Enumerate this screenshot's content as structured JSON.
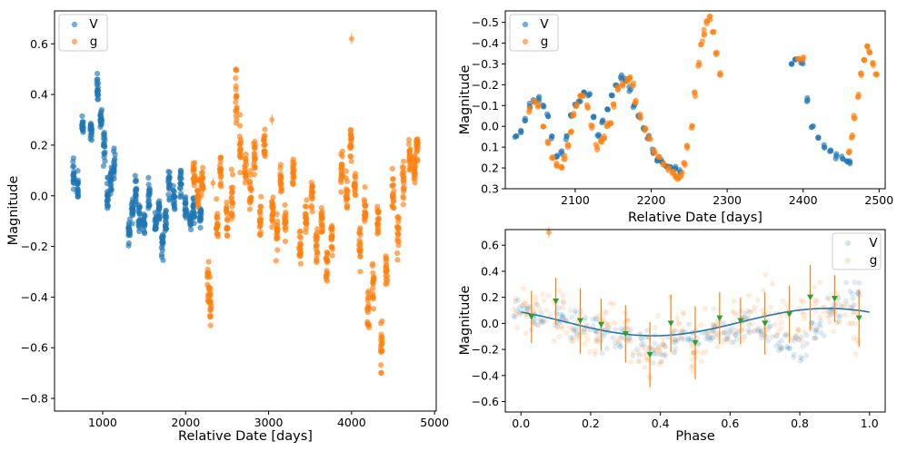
{
  "figure": {
    "width": 987,
    "height": 493
  },
  "colors": {
    "V": "#1f77b4",
    "g": "#ff7f0e",
    "binned": "#2ca02c",
    "model": "#1f77b4"
  },
  "chart_data": [
    {
      "id": "full",
      "type": "scatter",
      "title": "",
      "xlabel": "Relative Date [days]",
      "ylabel": "Magnitude",
      "xlim": [
        420,
        5020
      ],
      "ylim": [
        0.73,
        -0.85
      ],
      "y_inverted": true,
      "xticks": [
        1000,
        2000,
        3000,
        4000,
        5000
      ],
      "xtick_labels": [
        "1000",
        "2000",
        "3000",
        "4000",
        "5000"
      ],
      "yticks": [
        0.6,
        0.4,
        0.2,
        0.0,
        -0.2,
        -0.4,
        -0.6,
        -0.8
      ],
      "ytick_labels": [
        "0.6",
        "0.4",
        "0.2",
        "0.0",
        "−0.2",
        "−0.4",
        "−0.6",
        "−0.8"
      ],
      "legend": {
        "position": "upper-left",
        "entries": [
          "V",
          "g"
        ]
      },
      "series": [
        {
          "name": "V",
          "color_key": "V",
          "segments": [
            [
              650,
              0.08,
              0.06
            ],
            [
              700,
              0.03,
              0.05
            ],
            [
              760,
              0.27,
              0.03
            ],
            [
              860,
              0.27,
              0.04
            ],
            [
              940,
              0.42,
              0.05
            ],
            [
              980,
              0.3,
              0.04
            ],
            [
              1020,
              0.2,
              0.08
            ],
            [
              1060,
              0.0,
              0.06
            ],
            [
              1100,
              0.05,
              0.06
            ],
            [
              1140,
              0.12,
              0.06
            ],
            [
              1320,
              -0.15,
              0.06
            ],
            [
              1360,
              -0.05,
              0.06
            ],
            [
              1400,
              0.02,
              0.06
            ],
            [
              1440,
              -0.1,
              0.06
            ],
            [
              1500,
              -0.12,
              0.05
            ],
            [
              1560,
              0.0,
              0.06
            ],
            [
              1640,
              -0.1,
              0.05
            ],
            [
              1680,
              -0.05,
              0.06
            ],
            [
              1720,
              -0.2,
              0.06
            ],
            [
              1760,
              -0.1,
              0.06
            ],
            [
              1800,
              0.05,
              0.06
            ],
            [
              1860,
              0.0,
              0.05
            ],
            [
              1940,
              0.05,
              0.06
            ],
            [
              2000,
              -0.05,
              0.05
            ],
            [
              2060,
              -0.1,
              0.04
            ],
            [
              2100,
              -0.05,
              0.06
            ],
            [
              2180,
              -0.08,
              0.04
            ]
          ]
        },
        {
          "name": "g",
          "color_key": "g",
          "segments": [
            [
              2100,
              0.1,
              0.06
            ],
            [
              2150,
              0.0,
              0.06
            ],
            [
              2200,
              0.05,
              0.06
            ],
            [
              2270,
              -0.35,
              0.09
            ],
            [
              2300,
              -0.4,
              0.1
            ],
            [
              2380,
              -0.1,
              0.07
            ],
            [
              2420,
              0.1,
              0.08
            ],
            [
              2500,
              -0.1,
              0.09
            ],
            [
              2560,
              0.0,
              0.1
            ],
            [
              2610,
              0.4,
              0.12
            ],
            [
              2660,
              0.2,
              0.1
            ],
            [
              2720,
              0.1,
              0.07
            ],
            [
              2780,
              0.0,
              0.08
            ],
            [
              2830,
              0.15,
              0.08
            ],
            [
              2900,
              -0.1,
              0.07
            ],
            [
              2950,
              0.2,
              0.06
            ],
            [
              3050,
              -0.05,
              0.07
            ],
            [
              3100,
              -0.15,
              0.07
            ],
            [
              3150,
              0.05,
              0.07
            ],
            [
              3200,
              -0.1,
              0.07
            ],
            [
              3300,
              0.1,
              0.07
            ],
            [
              3380,
              -0.2,
              0.08
            ],
            [
              3450,
              -0.1,
              0.07
            ],
            [
              3520,
              0.0,
              0.07
            ],
            [
              3580,
              -0.2,
              0.08
            ],
            [
              3640,
              -0.1,
              0.07
            ],
            [
              3700,
              -0.28,
              0.09
            ],
            [
              3760,
              -0.15,
              0.07
            ],
            [
              3880,
              0.1,
              0.08
            ],
            [
              3940,
              0.0,
              0.08
            ],
            [
              3990,
              0.2,
              0.07
            ],
            [
              4040,
              0.05,
              0.07
            ],
            [
              4100,
              -0.2,
              0.08
            ],
            [
              4160,
              -0.05,
              0.07
            ],
            [
              4200,
              -0.45,
              0.1
            ],
            [
              4260,
              -0.35,
              0.08
            ],
            [
              4320,
              -0.1,
              0.07
            ],
            [
              4360,
              -0.6,
              0.1
            ],
            [
              4420,
              -0.3,
              0.08
            ],
            [
              4500,
              0.0,
              0.08
            ],
            [
              4560,
              -0.15,
              0.07
            ],
            [
              4620,
              0.05,
              0.07
            ],
            [
              4700,
              0.15,
              0.07
            ],
            [
              4760,
              0.1,
              0.07
            ],
            [
              4790,
              0.2,
              0.06
            ]
          ]
        }
      ],
      "outliers": [
        [
          4000,
          0.62
        ],
        [
          2330,
          0.05
        ],
        [
          2900,
          -0.12
        ],
        [
          3040,
          0.3
        ]
      ]
    },
    {
      "id": "zoom",
      "type": "scatter",
      "title": "",
      "xlabel": "Relative Date [days]",
      "ylabel": "Magnitude",
      "xlim": [
        2008,
        2508
      ],
      "ylim": [
        -0.555,
        0.3
      ],
      "y_inverted": false,
      "xticks": [
        2100,
        2200,
        2300,
        2400,
        2500
      ],
      "xtick_labels": [
        "2100",
        "2200",
        "2300",
        "2400",
        "2500"
      ],
      "yticks": [
        -0.5,
        -0.4,
        -0.3,
        -0.2,
        -0.1,
        0.0,
        0.1,
        0.2,
        0.3
      ],
      "ytick_labels": [
        "−0.5",
        "−0.4",
        "−0.3",
        "−0.2",
        "−0.1",
        "0.0",
        "0.1",
        "0.2",
        "0.3"
      ],
      "legend": {
        "position": "upper-left",
        "entries": [
          "V",
          "g"
        ]
      },
      "series": [
        {
          "name": "V",
          "color_key": "V",
          "x": [
            2022,
            2028,
            2034,
            2040,
            2046,
            2052,
            2058,
            2064,
            2070,
            2076,
            2082,
            2088,
            2094,
            2100,
            2106,
            2112,
            2118,
            2124,
            2130,
            2136,
            2142,
            2148,
            2154,
            2160,
            2166,
            2172,
            2178,
            2184,
            2190,
            2196,
            2202,
            2208,
            2214,
            2220,
            2226,
            2232,
            2238,
            2385,
            2390,
            2398,
            2405,
            2412,
            2420,
            2428,
            2436,
            2444,
            2452,
            2458,
            2462
          ],
          "y": [
            0.05,
            0.02,
            -0.03,
            -0.1,
            -0.12,
            -0.13,
            -0.1,
            -0.05,
            0.05,
            0.15,
            0.12,
            0.05,
            -0.05,
            -0.1,
            -0.12,
            -0.16,
            -0.15,
            -0.05,
            0.05,
            -0.02,
            -0.08,
            -0.15,
            -0.2,
            -0.24,
            -0.22,
            -0.18,
            -0.1,
            -0.05,
            0.0,
            0.05,
            0.12,
            0.16,
            0.17,
            0.19,
            0.19,
            0.2,
            0.22,
            -0.3,
            -0.32,
            -0.31,
            -0.13,
            0.0,
            0.05,
            0.1,
            0.12,
            0.14,
            0.15,
            0.17,
            0.17
          ]
        },
        {
          "name": "g",
          "color_key": "g",
          "x": [
            2040,
            2046,
            2052,
            2058,
            2064,
            2070,
            2076,
            2082,
            2086,
            2090,
            2094,
            2098,
            2102,
            2106,
            2110,
            2116,
            2122,
            2128,
            2134,
            2138,
            2142,
            2146,
            2150,
            2156,
            2162,
            2168,
            2172,
            2176,
            2180,
            2186,
            2192,
            2198,
            2204,
            2210,
            2216,
            2222,
            2228,
            2232,
            2236,
            2240,
            2244,
            2248,
            2254,
            2258,
            2262,
            2266,
            2270,
            2274,
            2278,
            2282,
            2286,
            2290,
            2394,
            2400,
            2460,
            2464,
            2468,
            2472,
            2476,
            2480,
            2484,
            2488,
            2492,
            2496
          ],
          "y": [
            -0.08,
            -0.12,
            -0.1,
            0.0,
            0.08,
            0.15,
            0.18,
            0.2,
            0.15,
            0.1,
            0.02,
            -0.05,
            -0.1,
            -0.14,
            -0.15,
            -0.1,
            0.0,
            0.1,
            0.07,
            0.05,
            0.0,
            -0.02,
            -0.1,
            -0.18,
            -0.2,
            -0.22,
            -0.23,
            -0.2,
            -0.12,
            -0.05,
            0.02,
            0.06,
            0.12,
            0.15,
            0.18,
            0.2,
            0.22,
            0.24,
            0.25,
            0.23,
            0.18,
            0.1,
            0.0,
            -0.15,
            -0.3,
            -0.4,
            -0.45,
            -0.5,
            -0.52,
            -0.45,
            -0.35,
            -0.25,
            -0.33,
            -0.33,
            0.12,
            0.05,
            -0.05,
            -0.15,
            -0.25,
            -0.32,
            -0.38,
            -0.36,
            -0.3,
            -0.25
          ]
        }
      ]
    },
    {
      "id": "phase",
      "type": "scatter",
      "title": "",
      "xlabel": "Phase",
      "ylabel": "Magnitude",
      "xlim": [
        -0.045,
        1.045
      ],
      "ylim": [
        0.72,
        -0.68
      ],
      "y_inverted": true,
      "xticks": [
        0.0,
        0.2,
        0.4,
        0.6,
        0.8,
        1.0
      ],
      "xtick_labels": [
        "0.0",
        "0.2",
        "0.4",
        "0.6",
        "0.8",
        "1.0"
      ],
      "yticks": [
        0.6,
        0.4,
        0.2,
        0.0,
        -0.2,
        -0.4,
        -0.6
      ],
      "ytick_labels": [
        "0.6",
        "0.4",
        "0.2",
        "0.0",
        "−0.2",
        "−0.4",
        "−0.6"
      ],
      "legend": {
        "position": "upper-right",
        "entries": [
          "V",
          "g"
        ]
      },
      "model": {
        "name": "sinusoid fit",
        "amplitude": 0.105,
        "phase_of_minimum": 0.88,
        "mean": 0.01
      },
      "binned": {
        "x": [
          0.03,
          0.1,
          0.17,
          0.23,
          0.3,
          0.37,
          0.43,
          0.5,
          0.57,
          0.63,
          0.7,
          0.77,
          0.83,
          0.9,
          0.97
        ],
        "y": [
          0.05,
          0.17,
          0.02,
          -0.01,
          -0.08,
          -0.24,
          0.0,
          -0.15,
          0.04,
          0.02,
          0.0,
          0.07,
          0.2,
          0.19,
          0.04
        ],
        "err": [
          0.2,
          0.18,
          0.25,
          0.2,
          0.22,
          0.25,
          0.22,
          0.28,
          0.2,
          0.18,
          0.24,
          0.22,
          0.25,
          0.18,
          0.22
        ]
      },
      "series": [
        {
          "name": "V",
          "color_key": "V",
          "segments": [
            [
              0.0,
              0.1,
              0.08
            ],
            [
              0.05,
              0.05,
              0.1
            ],
            [
              0.1,
              0.05,
              0.1
            ],
            [
              0.15,
              0.0,
              0.12
            ],
            [
              0.2,
              -0.05,
              0.12
            ],
            [
              0.25,
              -0.1,
              0.12
            ],
            [
              0.3,
              -0.1,
              0.12
            ],
            [
              0.35,
              -0.15,
              0.12
            ],
            [
              0.4,
              -0.2,
              0.12
            ],
            [
              0.45,
              -0.15,
              0.12
            ],
            [
              0.5,
              -0.1,
              0.12
            ],
            [
              0.55,
              -0.1,
              0.1
            ],
            [
              0.6,
              -0.05,
              0.1
            ],
            [
              0.65,
              0.0,
              0.1
            ],
            [
              0.7,
              -0.05,
              0.1
            ],
            [
              0.75,
              -0.15,
              0.12
            ],
            [
              0.8,
              -0.2,
              0.12
            ],
            [
              0.85,
              -0.05,
              0.1
            ],
            [
              0.9,
              0.1,
              0.12
            ],
            [
              0.95,
              0.2,
              0.15
            ]
          ]
        },
        {
          "name": "g",
          "color_key": "g",
          "segments": [
            [
              0.0,
              0.1,
              0.16
            ],
            [
              0.05,
              0.1,
              0.18
            ],
            [
              0.1,
              0.1,
              0.2
            ],
            [
              0.15,
              0.0,
              0.2
            ],
            [
              0.2,
              -0.05,
              0.18
            ],
            [
              0.25,
              0.05,
              0.2
            ],
            [
              0.3,
              -0.1,
              0.22
            ],
            [
              0.35,
              -0.25,
              0.22
            ],
            [
              0.4,
              -0.15,
              0.2
            ],
            [
              0.45,
              -0.05,
              0.2
            ],
            [
              0.5,
              -0.25,
              0.24
            ],
            [
              0.55,
              -0.05,
              0.2
            ],
            [
              0.6,
              -0.05,
              0.2
            ],
            [
              0.65,
              0.05,
              0.2
            ],
            [
              0.7,
              0.1,
              0.24
            ],
            [
              0.75,
              0.0,
              0.2
            ],
            [
              0.8,
              -0.05,
              0.2
            ],
            [
              0.85,
              0.1,
              0.22
            ],
            [
              0.9,
              0.1,
              0.2
            ],
            [
              0.95,
              0.0,
              0.2
            ]
          ]
        }
      ],
      "outliers": [
        [
          0.08,
          0.7
        ]
      ]
    }
  ]
}
